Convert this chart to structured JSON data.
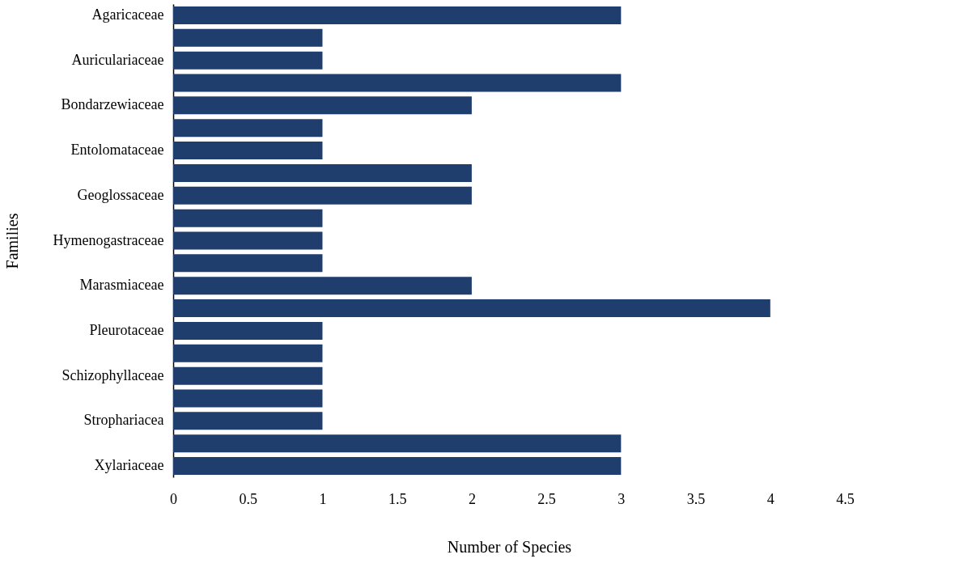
{
  "chart_data": {
    "type": "bar",
    "orientation": "horizontal",
    "xlabel": "Number of Species",
    "ylabel": "Families",
    "categories": [
      "Agaricaceae",
      null,
      "Auriculariaceae",
      null,
      "Bondarzewiaceae",
      null,
      "Entolomataceae",
      null,
      "Geoglossaceae",
      null,
      "Hymenogastraceae",
      null,
      "Marasmiaceae",
      null,
      "Pleurotaceae",
      null,
      "Schizophyllaceae",
      null,
      "Strophariacea",
      null,
      "Xylariaceae"
    ],
    "values": [
      3,
      1,
      1,
      3,
      2,
      1,
      1,
      2,
      2,
      1,
      1,
      1,
      2,
      4,
      1,
      1,
      1,
      1,
      1,
      3,
      3
    ],
    "color": "#1f3d6d",
    "xlim": [
      0,
      4.5
    ],
    "xticks": [
      0,
      0.5,
      1,
      1.5,
      2,
      2.5,
      3,
      3.5,
      4,
      4.5
    ],
    "grid": false
  }
}
